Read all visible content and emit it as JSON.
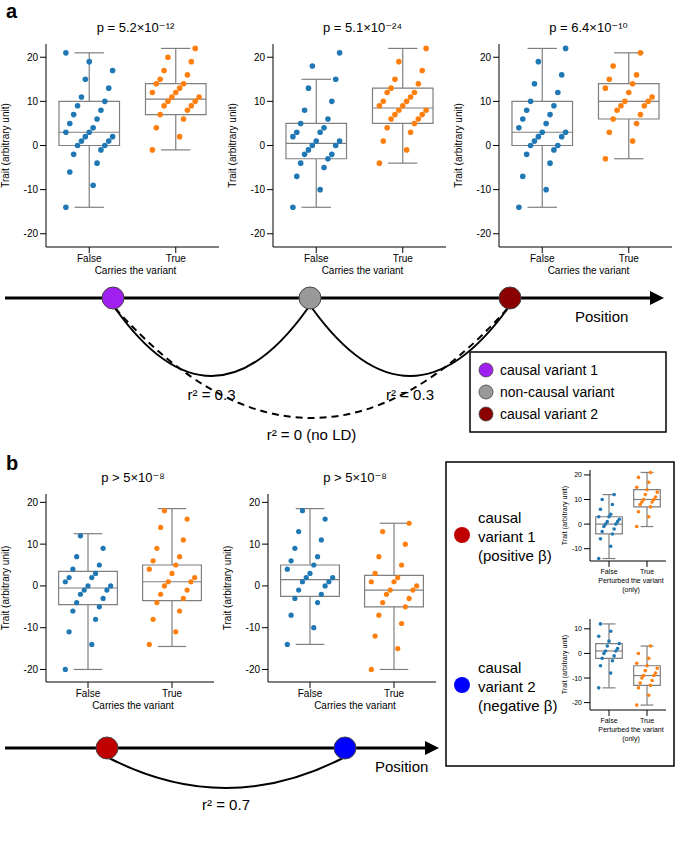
{
  "chart_data": [
    {
      "type": "box_swarm",
      "title": "p = 5.2×10⁻¹²",
      "xlabel": "Carries the variant",
      "ylabel": "Trait (arbitrary unit)",
      "categories": [
        "False",
        "True"
      ],
      "colors": [
        "#1f77b4",
        "#ff7f0e"
      ],
      "ylim": [
        -23,
        23
      ],
      "yticks": [
        -20,
        -10,
        0,
        10,
        20
      ],
      "boxes": [
        {
          "whislo": -14,
          "q1": 0,
          "median": 3,
          "q3": 10,
          "whishi": 21
        },
        {
          "whislo": -1,
          "q1": 7,
          "median": 10.5,
          "q3": 14,
          "whishi": 22
        }
      ],
      "points": [
        [
          -14,
          -9,
          -6,
          -4,
          -2,
          -1,
          0,
          0,
          1,
          1,
          2,
          2,
          3,
          3,
          4,
          5,
          6,
          7,
          8,
          9,
          10,
          11,
          13,
          15,
          17,
          19,
          21
        ],
        [
          -1,
          2,
          4,
          6,
          7,
          8,
          9,
          9,
          10,
          10,
          11,
          11,
          12,
          12,
          13,
          14,
          14,
          15,
          16,
          17,
          19,
          20,
          22
        ]
      ]
    },
    {
      "type": "box_swarm",
      "title": "p = 5.1×10⁻²⁴",
      "xlabel": "Carries the variant",
      "ylabel": "Trait (arbitrary unit)",
      "categories": [
        "False",
        "True"
      ],
      "colors": [
        "#1f77b4",
        "#ff7f0e"
      ],
      "ylim": [
        -23,
        23
      ],
      "yticks": [
        -20,
        -10,
        0,
        10,
        20
      ],
      "boxes": [
        {
          "whislo": -14,
          "q1": -3,
          "median": 0.5,
          "q3": 5,
          "whishi": 15
        },
        {
          "whislo": -4,
          "q1": 5,
          "median": 8.5,
          "q3": 13,
          "whishi": 22
        }
      ],
      "points": [
        [
          -14,
          -10,
          -7,
          -5,
          -4,
          -3,
          -2,
          -2,
          -1,
          0,
          0,
          1,
          1,
          2,
          3,
          3,
          4,
          5,
          6,
          8,
          10,
          13,
          15,
          18,
          21
        ],
        [
          -4,
          -1,
          1,
          3,
          4,
          5,
          6,
          6,
          7,
          7,
          8,
          8,
          9,
          9,
          10,
          10,
          11,
          12,
          12,
          13,
          14,
          15,
          17,
          19,
          22
        ]
      ]
    },
    {
      "type": "box_swarm",
      "title": "p = 6.4×10⁻¹⁰",
      "xlabel": "Carries the variant",
      "ylabel": "Trait (arbitrary unit)",
      "categories": [
        "False",
        "True"
      ],
      "colors": [
        "#1f77b4",
        "#ff7f0e"
      ],
      "ylim": [
        -23,
        23
      ],
      "yticks": [
        -20,
        -10,
        0,
        10,
        20
      ],
      "boxes": [
        {
          "whislo": -14,
          "q1": 0,
          "median": 3,
          "q3": 10,
          "whishi": 22
        },
        {
          "whislo": -3,
          "q1": 6,
          "median": 10,
          "q3": 14,
          "whishi": 21
        }
      ],
      "points": [
        [
          -14,
          -10,
          -7,
          -4,
          -2,
          -1,
          0,
          0,
          1,
          2,
          2,
          3,
          3,
          4,
          5,
          6,
          7,
          8,
          9,
          10,
          12,
          14,
          16,
          19,
          22
        ],
        [
          -3,
          1,
          3,
          5,
          6,
          7,
          8,
          9,
          9,
          10,
          10,
          11,
          12,
          13,
          14,
          15,
          16,
          18,
          21
        ]
      ]
    },
    {
      "type": "box_swarm",
      "title": "p > 5×10⁻⁸",
      "xlabel": "Carries the variant",
      "ylabel": "Trait (arbitrary unit)",
      "categories": [
        "False",
        "True"
      ],
      "colors": [
        "#1f77b4",
        "#ff7f0e"
      ],
      "ylim": [
        -23,
        22
      ],
      "yticks": [
        -20,
        -10,
        0,
        10,
        20
      ],
      "boxes": [
        {
          "whislo": -20,
          "q1": -4.5,
          "median": -0.5,
          "q3": 3.5,
          "whishi": 12.5
        },
        {
          "whislo": -14.5,
          "q1": -3.5,
          "median": 1,
          "q3": 5,
          "whishi": 18.5
        }
      ],
      "points": [
        [
          -20,
          -14,
          -11,
          -8,
          -6,
          -5,
          -4,
          -3,
          -2,
          -1,
          -1,
          0,
          0,
          1,
          2,
          2,
          3,
          4,
          5,
          7,
          9,
          12
        ],
        [
          -14,
          -11,
          -8,
          -6,
          -4,
          -3,
          -2,
          -1,
          0,
          1,
          1,
          2,
          3,
          4,
          5,
          6,
          7,
          9,
          11,
          14,
          16,
          18
        ]
      ]
    },
    {
      "type": "box_swarm",
      "title": "p > 5×10⁻⁸",
      "xlabel": "Carries the variant",
      "ylabel": "Trait (arbitrary unit)",
      "categories": [
        "False",
        "True"
      ],
      "colors": [
        "#1f77b4",
        "#ff7f0e"
      ],
      "ylim": [
        -23,
        22
      ],
      "yticks": [
        -20,
        -10,
        0,
        10,
        20
      ],
      "boxes": [
        {
          "whislo": -14,
          "q1": -2.5,
          "median": 1.5,
          "q3": 5,
          "whishi": 18.5
        },
        {
          "whislo": -20,
          "q1": -5,
          "median": -1,
          "q3": 2.5,
          "whishi": 15
        }
      ],
      "points": [
        [
          -14,
          -10,
          -7,
          -4,
          -3,
          -2,
          -1,
          0,
          1,
          1,
          2,
          2,
          3,
          4,
          5,
          6,
          7,
          9,
          11,
          13,
          16,
          18
        ],
        [
          -20,
          -15,
          -12,
          -9,
          -7,
          -5,
          -4,
          -3,
          -2,
          -1,
          -1,
          0,
          1,
          1,
          2,
          3,
          5,
          7,
          10,
          13,
          15
        ]
      ]
    },
    {
      "type": "box_swarm",
      "xlabel": "Perturbed the variant\n(only)",
      "ylabel": "Trait (arbitrary unit)",
      "categories": [
        "False",
        "True"
      ],
      "colors": [
        "#1f77b4",
        "#ff7f0e"
      ],
      "ylim": [
        -15,
        22
      ],
      "yticks": [
        -10,
        0,
        10,
        20
      ],
      "boxes": [
        {
          "whislo": -14,
          "q1": -4,
          "median": 0,
          "q3": 3,
          "whishi": 12
        },
        {
          "whislo": -1,
          "q1": 7,
          "median": 10,
          "q3": 14,
          "whishi": 21
        }
      ],
      "points": [
        [
          -14,
          -9,
          -6,
          -4,
          -3,
          -2,
          -1,
          0,
          0,
          1,
          1,
          2,
          3,
          3,
          4,
          6,
          8,
          10,
          12
        ],
        [
          -1,
          3,
          5,
          7,
          8,
          9,
          9,
          10,
          10,
          11,
          12,
          13,
          14,
          15,
          17,
          19,
          21
        ]
      ]
    },
    {
      "type": "box_swarm",
      "xlabel": "Perturbed the variant\n(only)",
      "ylabel": "Trait (arbitrary unit)",
      "categories": [
        "False",
        "True"
      ],
      "colors": [
        "#1f77b4",
        "#ff7f0e"
      ],
      "ylim": [
        -23,
        14
      ],
      "yticks": [
        -20,
        -10,
        0,
        10
      ],
      "boxes": [
        {
          "whislo": -14,
          "q1": -2,
          "median": 1,
          "q3": 4,
          "whishi": 12
        },
        {
          "whislo": -21,
          "q1": -13,
          "median": -9,
          "q3": -5,
          "whishi": 3
        }
      ],
      "points": [
        [
          -14,
          -8,
          -5,
          -3,
          -2,
          -1,
          0,
          1,
          1,
          2,
          3,
          4,
          5,
          7,
          9,
          12
        ],
        [
          -21,
          -17,
          -14,
          -13,
          -12,
          -11,
          -10,
          -9,
          -9,
          -8,
          -7,
          -6,
          -5,
          -4,
          -2,
          0,
          3
        ]
      ]
    }
  ],
  "diagram": {
    "panel_labels": [
      "a",
      "b"
    ],
    "a": {
      "axis_label": "Position",
      "variants": [
        {
          "label": "causal variant 1",
          "color": "#a020f0"
        },
        {
          "label": "non-causal variant",
          "color": "#999999"
        },
        {
          "label": "causal variant 2",
          "color": "#8b0000"
        }
      ],
      "ld": [
        {
          "from": 0,
          "to": 1,
          "label": "r² = 0.3",
          "line_style": "solid"
        },
        {
          "from": 1,
          "to": 2,
          "label": "r² = 0.3",
          "line_style": "solid"
        },
        {
          "from": 0,
          "to": 2,
          "label": "r² = 0 (no LD)",
          "line_style": "dashed"
        }
      ]
    },
    "b": {
      "axis_label": "Position",
      "variants": [
        {
          "label": "causal\nvariant 1\n(positive β)",
          "color": "#c00000"
        },
        {
          "label": "causal\nvariant 2\n(negative β)",
          "color": "#0000ff"
        }
      ],
      "ld": [
        {
          "from": 0,
          "to": 1,
          "label": "r² = 0.7",
          "line_style": "solid"
        }
      ]
    }
  }
}
